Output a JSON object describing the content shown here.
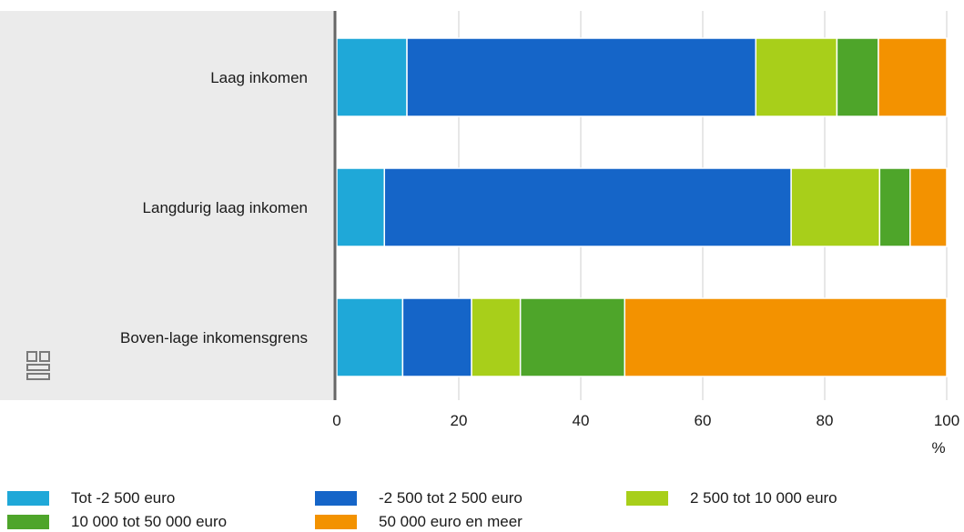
{
  "chart_data": {
    "type": "bar",
    "orientation": "horizontal",
    "stacked": true,
    "categories": [
      "Laag inkomen",
      "Langdurig laag inkomen",
      "Boven-lage inkomensgrens"
    ],
    "series": [
      {
        "name": "Tot -2 500 euro",
        "color": "#1fa8d8",
        "values": [
          11.5,
          7.8,
          10.8
        ]
      },
      {
        "name": "-2 500 tot 2 500 euro",
        "color": "#1565c8",
        "values": [
          57.2,
          66.7,
          11.3
        ]
      },
      {
        "name": "2 500 tot 10 000 euro",
        "color": "#a8cf1a",
        "values": [
          13.3,
          14.5,
          8.0
        ]
      },
      {
        "name": "10 000 tot 50 000 euro",
        "color": "#4ea52a",
        "values": [
          6.8,
          5.0,
          17.1
        ]
      },
      {
        "name": "50 000 euro en meer",
        "color": "#f39200",
        "values": [
          11.2,
          6.0,
          52.8
        ]
      }
    ],
    "xlim": [
      0,
      100
    ],
    "xticks": [
      "0",
      "20",
      "40",
      "60",
      "80",
      "100"
    ],
    "xlabel": "%",
    "grid": true,
    "legend_position": "bottom"
  },
  "logo_icon": "cbs-logo"
}
